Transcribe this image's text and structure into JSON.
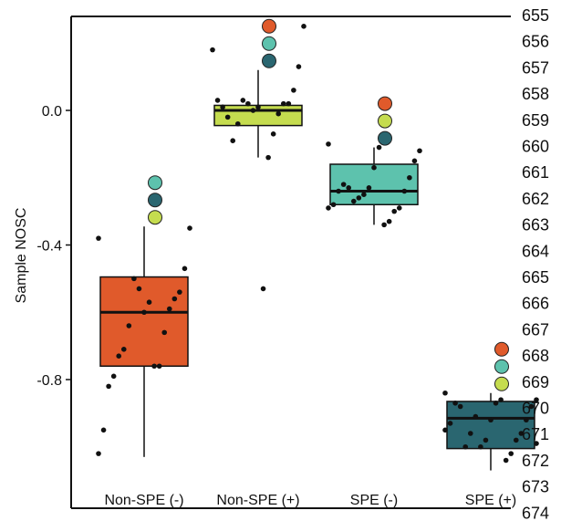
{
  "chart_data": {
    "type": "box",
    "title": "",
    "xlabel": "",
    "ylabel": "Sample NOSC",
    "ylim": [
      -1.17,
      0.28
    ],
    "yticks": [
      0.0,
      -0.4,
      -0.8
    ],
    "ytick_labels": [
      "0.0",
      "-0.4",
      "-0.8"
    ],
    "grid": false,
    "categories": [
      "Non-SPE (-)",
      "Non-SPE (+)",
      "SPE (-)",
      "SPE (+)"
    ],
    "boxes": [
      {
        "category": "Non-SPE (-)",
        "color": "#e05a2b",
        "whisker_low": -1.03,
        "q1": -0.76,
        "median": -0.6,
        "q3": -0.495,
        "whisker_high": -0.345
      },
      {
        "category": "Non-SPE (+)",
        "color": "#c5dc4f",
        "whisker_low": -0.14,
        "q1": -0.045,
        "median": 0.0,
        "q3": 0.015,
        "whisker_high": 0.12
      },
      {
        "category": "SPE (-)",
        "color": "#5dc2ad",
        "whisker_low": -0.34,
        "q1": -0.28,
        "median": -0.24,
        "q3": -0.16,
        "whisker_high": -0.11
      },
      {
        "category": "SPE (+)",
        "color": "#2a6670",
        "whisker_low": -1.07,
        "q1": -1.005,
        "median": -0.915,
        "q3": -0.865,
        "whisker_high": -0.84
      }
    ],
    "points": [
      [
        -0.38,
        -0.35,
        -0.47,
        -0.54,
        -0.56,
        -0.59,
        -0.66,
        -0.76,
        -0.76,
        -0.57,
        -0.6,
        -0.53,
        -0.5,
        -0.64,
        -0.71,
        -0.73,
        -0.79,
        -0.82,
        -0.95,
        -1.02
      ],
      [
        0.18,
        0.25,
        0.13,
        0.06,
        0.02,
        0.02,
        -0.01,
        -0.07,
        -0.14,
        -0.53,
        0.01,
        0.0,
        0.02,
        0.03,
        -0.04,
        -0.09,
        -0.02,
        0.01,
        0.03
      ],
      [
        -0.1,
        -0.12,
        -0.15,
        -0.2,
        -0.24,
        -0.29,
        -0.3,
        -0.33,
        -0.34,
        -0.11,
        -0.17,
        -0.23,
        -0.25,
        -0.26,
        -0.27,
        -0.23,
        -0.22,
        -0.24,
        -0.28,
        -0.29
      ],
      [
        -0.84,
        -0.86,
        -0.88,
        -0.92,
        -0.96,
        -0.98,
        -1.02,
        -1.04,
        -0.86,
        -0.87,
        -0.92,
        -0.98,
        -1.0,
        -0.91,
        -0.96,
        -1.0,
        -0.88,
        -0.87,
        -0.93,
        -0.95,
        -0.99
      ]
    ],
    "marker_colors": {
      "orange": "#e05a2b",
      "lime": "#c5dc4f",
      "aqua": "#5dc2ad",
      "teal": "#2a6670"
    },
    "markers": [
      {
        "group": 0,
        "colors": [
          "aqua",
          "teal",
          "lime"
        ]
      },
      {
        "group": 1,
        "colors": [
          "orange",
          "aqua",
          "teal"
        ]
      },
      {
        "group": 2,
        "colors": [
          "orange",
          "lime",
          "teal"
        ]
      },
      {
        "group": 3,
        "colors": [
          "orange",
          "aqua",
          "lime"
        ]
      }
    ]
  },
  "line_numbers": [
    "655",
    "656",
    "657",
    "658",
    "659",
    "660",
    "661",
    "662",
    "663",
    "664",
    "665",
    "666",
    "667",
    "668",
    "669",
    "670",
    "671",
    "672",
    "673",
    "674"
  ]
}
